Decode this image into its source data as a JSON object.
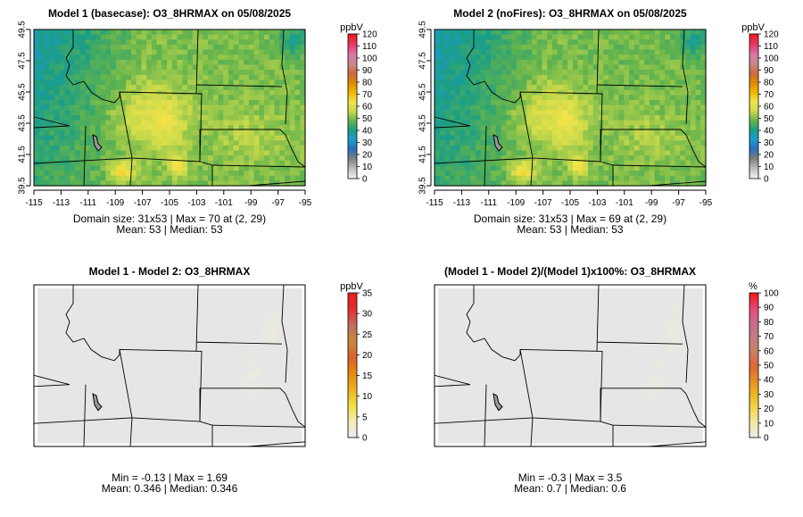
{
  "colors": {
    "ramp": [
      "#f0f0f0",
      "#bdbdbd",
      "#808080",
      "#2b6fb8",
      "#1e9ad1",
      "#1a9e86",
      "#62b34d",
      "#c8d94a",
      "#f2e44a",
      "#f2b800",
      "#e08a00",
      "#cf6a3e",
      "#c98a8a",
      "#d977a6",
      "#e83a6b",
      "#ee1d23"
    ],
    "diff_ramp": [
      "#ececec",
      "#f5ecb0",
      "#f2e040",
      "#f0b020",
      "#e68a10",
      "#d8602c",
      "#c8883a",
      "#c07060",
      "#e03030",
      "#ee1d23"
    ],
    "pct_ramp": [
      "#ececec",
      "#f4e8a0",
      "#f1d450",
      "#eeb61f",
      "#e68b24",
      "#dc6736",
      "#cc8267",
      "#c27e84",
      "#cc6b91",
      "#e54a75",
      "#ee1d23"
    ],
    "map_line": "#000000",
    "diff_fill": "#e6e6e6"
  },
  "chart_data": [
    {
      "type": "heatmap",
      "title": "Model 1 (basecase): O3_8HRMAX on 05/08/2025",
      "legend_title": "ppbV",
      "legend_ticks": [
        "0",
        "10",
        "20",
        "30",
        "40",
        "50",
        "60",
        "70",
        "80",
        "90",
        "100",
        "110",
        "120"
      ],
      "x_ticks": [
        "-115",
        "-113",
        "-111",
        "-109",
        "-107",
        "-105",
        "-103",
        "-101",
        "-99",
        "-97",
        "-95"
      ],
      "y_ticks": [
        "39.5",
        "41.5",
        "43.5",
        "45.5",
        "47.5",
        "49.5"
      ],
      "stats": [
        "Domain size: 31x53 | Max = 70 at (2, 29)",
        "Mean: 53 |  Median: 53"
      ],
      "domain": [
        31,
        53
      ],
      "max": 70,
      "mean": 53,
      "median": 53,
      "vmin": 0,
      "vmax": 120
    },
    {
      "type": "heatmap",
      "title": "Model 2 (noFires): O3_8HRMAX on 05/08/2025",
      "legend_title": "ppbV",
      "legend_ticks": [
        "0",
        "10",
        "20",
        "30",
        "40",
        "50",
        "60",
        "70",
        "80",
        "90",
        "100",
        "110",
        "120"
      ],
      "x_ticks": [
        "-115",
        "-113",
        "-111",
        "-109",
        "-107",
        "-105",
        "-103",
        "-101",
        "-99",
        "-97",
        "-95"
      ],
      "y_ticks": [
        "39.5",
        "41.5",
        "43.5",
        "45.5",
        "47.5",
        "49.5"
      ],
      "stats": [
        "Domain size: 31x53 | Max = 69 at (2, 29)",
        "Mean: 53 |  Median: 53"
      ],
      "domain": [
        31,
        53
      ],
      "max": 69,
      "mean": 53,
      "median": 53,
      "vmin": 0,
      "vmax": 120
    },
    {
      "type": "heatmap",
      "title": "Model 1 - Model 2: O3_8HRMAX",
      "legend_title": "ppbV",
      "legend_ticks": [
        "0",
        "5",
        "10",
        "15",
        "20",
        "25",
        "30",
        "35"
      ],
      "stats": [
        "Min = -0.13 | Max = 1.69",
        "Mean: 0.346 |  Median: 0.346"
      ],
      "min": -0.13,
      "max": 1.69,
      "mean": 0.346,
      "median": 0.346,
      "vmin": 0,
      "vmax": 35
    },
    {
      "type": "heatmap",
      "title": "(Model 1 - Model 2)/(Model 1)x100%: O3_8HRMAX",
      "legend_title": "%",
      "legend_ticks": [
        "0",
        "10",
        "20",
        "30",
        "40",
        "50",
        "60",
        "70",
        "80",
        "90",
        "100"
      ],
      "stats": [
        "Min = -0.3 | Max = 3.5",
        "Mean: 0.7 |  Median: 0.6"
      ],
      "min": -0.3,
      "max": 3.5,
      "mean": 0.7,
      "median": 0.6,
      "vmin": 0,
      "vmax": 100
    }
  ]
}
